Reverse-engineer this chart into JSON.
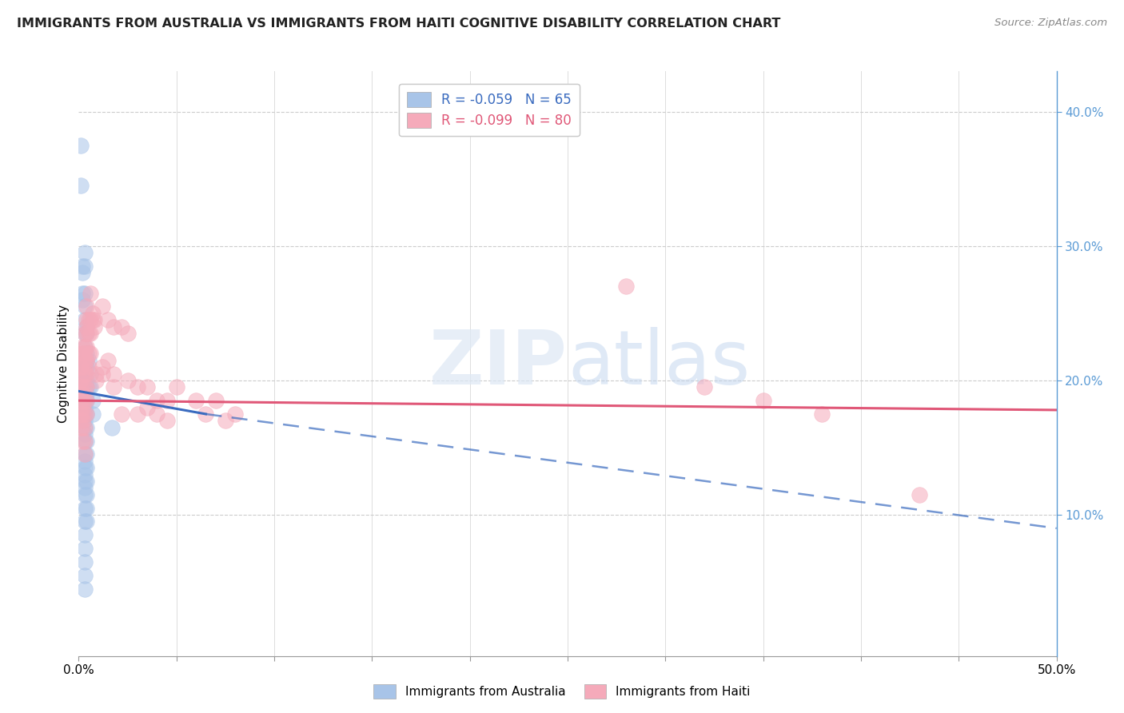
{
  "title": "IMMIGRANTS FROM AUSTRALIA VS IMMIGRANTS FROM HAITI COGNITIVE DISABILITY CORRELATION CHART",
  "source": "Source: ZipAtlas.com",
  "ylabel": "Cognitive Disability",
  "right_yticks": [
    "40.0%",
    "30.0%",
    "20.0%",
    "10.0%"
  ],
  "right_ytick_vals": [
    0.4,
    0.3,
    0.2,
    0.1
  ],
  "color_australia": "#a8c4e8",
  "color_haiti": "#f5aaba",
  "trendline_australia_color": "#3a6bbf",
  "trendline_haiti_color": "#e05878",
  "watermark": "ZIPatlas",
  "xlim": [
    0.0,
    0.5
  ],
  "ylim": [
    -0.005,
    0.43
  ],
  "australia_points": [
    [
      0.001,
      0.375
    ],
    [
      0.001,
      0.345
    ],
    [
      0.002,
      0.285
    ],
    [
      0.002,
      0.265
    ],
    [
      0.002,
      0.28
    ],
    [
      0.002,
      0.26
    ],
    [
      0.003,
      0.295
    ],
    [
      0.003,
      0.285
    ],
    [
      0.003,
      0.265
    ],
    [
      0.003,
      0.255
    ],
    [
      0.003,
      0.245
    ],
    [
      0.003,
      0.235
    ],
    [
      0.003,
      0.225
    ],
    [
      0.003,
      0.215
    ],
    [
      0.003,
      0.21
    ],
    [
      0.003,
      0.205
    ],
    [
      0.003,
      0.2
    ],
    [
      0.003,
      0.195
    ],
    [
      0.003,
      0.19
    ],
    [
      0.003,
      0.185
    ],
    [
      0.003,
      0.18
    ],
    [
      0.003,
      0.175
    ],
    [
      0.003,
      0.17
    ],
    [
      0.003,
      0.165
    ],
    [
      0.003,
      0.16
    ],
    [
      0.003,
      0.155
    ],
    [
      0.003,
      0.145
    ],
    [
      0.003,
      0.14
    ],
    [
      0.003,
      0.135
    ],
    [
      0.003,
      0.13
    ],
    [
      0.003,
      0.125
    ],
    [
      0.003,
      0.12
    ],
    [
      0.003,
      0.115
    ],
    [
      0.003,
      0.105
    ],
    [
      0.003,
      0.095
    ],
    [
      0.003,
      0.085
    ],
    [
      0.003,
      0.075
    ],
    [
      0.003,
      0.065
    ],
    [
      0.003,
      0.055
    ],
    [
      0.003,
      0.045
    ],
    [
      0.004,
      0.24
    ],
    [
      0.004,
      0.235
    ],
    [
      0.004,
      0.22
    ],
    [
      0.004,
      0.215
    ],
    [
      0.004,
      0.21
    ],
    [
      0.004,
      0.2
    ],
    [
      0.004,
      0.195
    ],
    [
      0.004,
      0.19
    ],
    [
      0.004,
      0.185
    ],
    [
      0.004,
      0.175
    ],
    [
      0.004,
      0.165
    ],
    [
      0.004,
      0.155
    ],
    [
      0.004,
      0.145
    ],
    [
      0.004,
      0.135
    ],
    [
      0.004,
      0.125
    ],
    [
      0.004,
      0.115
    ],
    [
      0.004,
      0.105
    ],
    [
      0.004,
      0.095
    ],
    [
      0.005,
      0.215
    ],
    [
      0.005,
      0.195
    ],
    [
      0.006,
      0.205
    ],
    [
      0.006,
      0.195
    ],
    [
      0.007,
      0.185
    ],
    [
      0.007,
      0.175
    ],
    [
      0.017,
      0.165
    ]
  ],
  "haiti_points": [
    [
      0.001,
      0.21
    ],
    [
      0.001,
      0.2
    ],
    [
      0.001,
      0.195
    ],
    [
      0.001,
      0.185
    ],
    [
      0.001,
      0.175
    ],
    [
      0.001,
      0.165
    ],
    [
      0.002,
      0.225
    ],
    [
      0.002,
      0.22
    ],
    [
      0.002,
      0.215
    ],
    [
      0.002,
      0.205
    ],
    [
      0.002,
      0.195
    ],
    [
      0.002,
      0.19
    ],
    [
      0.002,
      0.185
    ],
    [
      0.002,
      0.18
    ],
    [
      0.002,
      0.175
    ],
    [
      0.002,
      0.17
    ],
    [
      0.002,
      0.165
    ],
    [
      0.002,
      0.155
    ],
    [
      0.003,
      0.235
    ],
    [
      0.003,
      0.225
    ],
    [
      0.003,
      0.22
    ],
    [
      0.003,
      0.215
    ],
    [
      0.003,
      0.21
    ],
    [
      0.003,
      0.205
    ],
    [
      0.003,
      0.195
    ],
    [
      0.003,
      0.185
    ],
    [
      0.003,
      0.175
    ],
    [
      0.003,
      0.165
    ],
    [
      0.003,
      0.155
    ],
    [
      0.003,
      0.145
    ],
    [
      0.004,
      0.255
    ],
    [
      0.004,
      0.245
    ],
    [
      0.004,
      0.24
    ],
    [
      0.004,
      0.235
    ],
    [
      0.004,
      0.225
    ],
    [
      0.004,
      0.215
    ],
    [
      0.004,
      0.205
    ],
    [
      0.004,
      0.195
    ],
    [
      0.004,
      0.185
    ],
    [
      0.004,
      0.175
    ],
    [
      0.005,
      0.245
    ],
    [
      0.005,
      0.235
    ],
    [
      0.005,
      0.22
    ],
    [
      0.005,
      0.21
    ],
    [
      0.006,
      0.265
    ],
    [
      0.006,
      0.245
    ],
    [
      0.006,
      0.235
    ],
    [
      0.006,
      0.22
    ],
    [
      0.007,
      0.25
    ],
    [
      0.007,
      0.245
    ],
    [
      0.008,
      0.245
    ],
    [
      0.008,
      0.24
    ],
    [
      0.009,
      0.205
    ],
    [
      0.009,
      0.2
    ],
    [
      0.012,
      0.255
    ],
    [
      0.012,
      0.205
    ],
    [
      0.012,
      0.21
    ],
    [
      0.015,
      0.245
    ],
    [
      0.015,
      0.215
    ],
    [
      0.018,
      0.24
    ],
    [
      0.018,
      0.205
    ],
    [
      0.018,
      0.195
    ],
    [
      0.022,
      0.24
    ],
    [
      0.022,
      0.175
    ],
    [
      0.025,
      0.235
    ],
    [
      0.025,
      0.2
    ],
    [
      0.03,
      0.195
    ],
    [
      0.03,
      0.175
    ],
    [
      0.035,
      0.195
    ],
    [
      0.035,
      0.18
    ],
    [
      0.04,
      0.185
    ],
    [
      0.04,
      0.175
    ],
    [
      0.045,
      0.185
    ],
    [
      0.045,
      0.17
    ],
    [
      0.05,
      0.195
    ],
    [
      0.06,
      0.185
    ],
    [
      0.065,
      0.175
    ],
    [
      0.07,
      0.185
    ],
    [
      0.075,
      0.17
    ],
    [
      0.08,
      0.175
    ],
    [
      0.28,
      0.27
    ],
    [
      0.32,
      0.195
    ],
    [
      0.35,
      0.185
    ],
    [
      0.38,
      0.175
    ],
    [
      0.43,
      0.115
    ]
  ],
  "trendline_australia_solid": {
    "x_start": 0.0,
    "y_start": 0.192,
    "x_end": 0.065,
    "y_end": 0.175
  },
  "trendline_australia_dashed": {
    "x_start": 0.065,
    "y_start": 0.175,
    "x_end": 0.5,
    "y_end": 0.09
  },
  "trendline_haiti": {
    "x_start": 0.0,
    "y_start": 0.185,
    "x_end": 0.5,
    "y_end": 0.178
  }
}
